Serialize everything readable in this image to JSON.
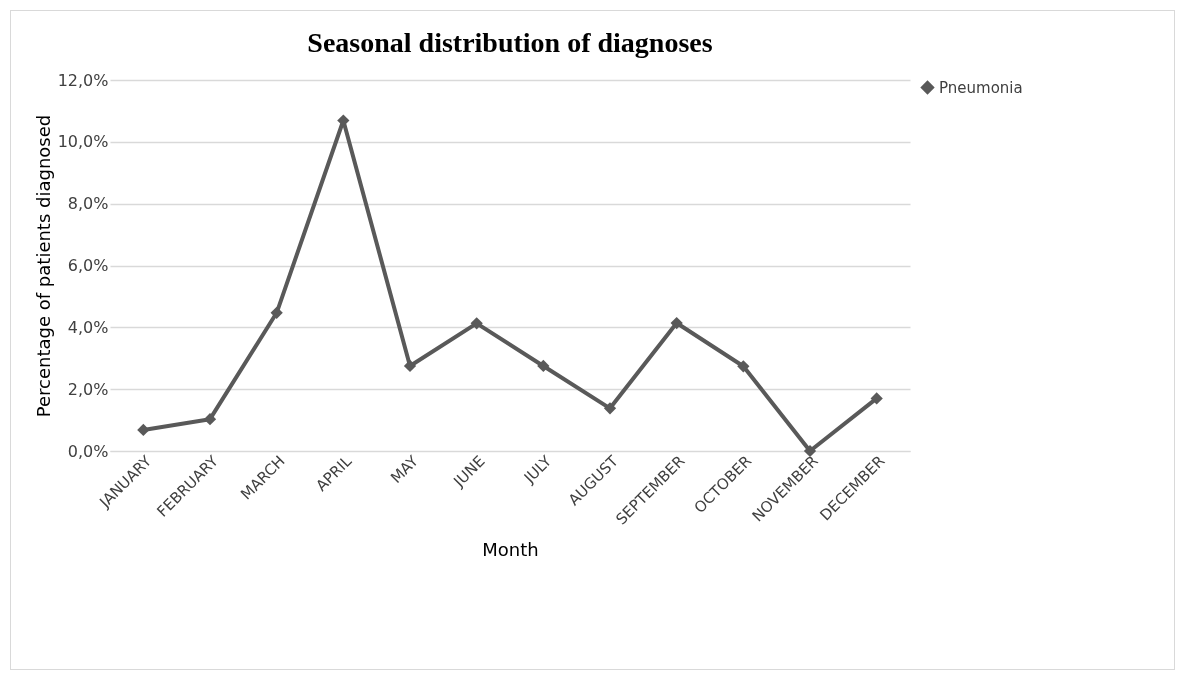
{
  "chart_data": {
    "type": "line",
    "title": "Seasonal distribution of diagnoses",
    "xlabel": "Month",
    "ylabel": "Percentage of patients diagnosed",
    "categories": [
      "JANUARY",
      "FEBRUARY",
      "MARCH",
      "APRIL",
      "MAY",
      "JUNE",
      "JULY",
      "AUGUST",
      "SEPTEMBER",
      "OCTOBER",
      "NOVEMBER",
      "DECEMBER"
    ],
    "series": [
      {
        "name": "Pneumonia",
        "color": "#595959",
        "values": [
          0.68,
          1.03,
          4.47,
          10.69,
          2.75,
          4.13,
          2.75,
          1.38,
          4.14,
          2.74,
          0,
          1.7
        ]
      }
    ],
    "ylim": [
      0,
      12
    ],
    "yticks": [
      {
        "value": 0,
        "label": "0,0%"
      },
      {
        "value": 2,
        "label": "2,0%"
      },
      {
        "value": 4,
        "label": "4,0%"
      },
      {
        "value": 6,
        "label": "6,0%"
      },
      {
        "value": 8,
        "label": "8,0%"
      },
      {
        "value": 10,
        "label": "10,0%"
      },
      {
        "value": 12,
        "label": "12,0%"
      }
    ],
    "grid": "y",
    "legend": "right",
    "marker": "diamond",
    "line_style": "solid"
  }
}
